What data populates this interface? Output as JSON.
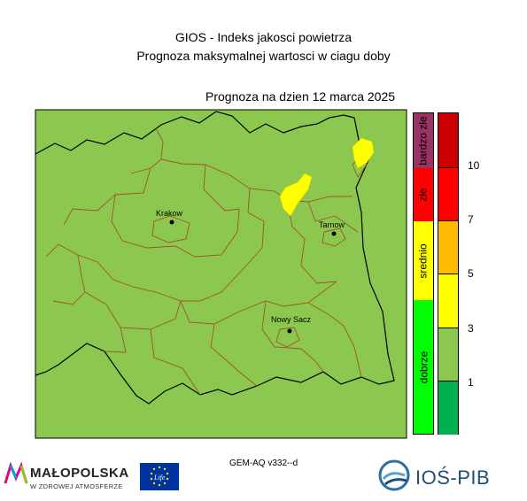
{
  "header": {
    "line1": "GIOS - Indeks jakosci powietrza",
    "line2": "Prognoza maksymalnej wartosci w ciagu doby",
    "date": "Prognoza na dzien  12 marca 2025"
  },
  "map": {
    "background_color": "#8cc850",
    "forecast_patch_color": "#ffff00",
    "cities": [
      {
        "name": "Krakow"
      },
      {
        "name": "Tarnow"
      },
      {
        "name": "Nowy Sacz"
      }
    ]
  },
  "legend": {
    "categories": [
      {
        "label": "bardzo złe",
        "color": "#993366"
      },
      {
        "label": "złe",
        "color": "#ff0000"
      },
      {
        "label": "srednio",
        "color": "#ffff00"
      },
      {
        "label": "dobrze",
        "color": "#00ff00"
      }
    ],
    "scale_colors": [
      "#cc0000",
      "#ff0000",
      "#ffbb00",
      "#ffff00",
      "#8cc850",
      "#00b050"
    ],
    "tick_labels": [
      "10",
      "7",
      "5",
      "3",
      "1"
    ]
  },
  "footer": {
    "model": "GEM-AQ v332--d",
    "logo_malopolska_word": "MAŁOPOLSKA",
    "logo_malopolska_sub": "W ZDROWEJ ATMOSFERZE",
    "logo_eu_text": "Life",
    "logo_ios_word": "IOŚ-PIB"
  }
}
